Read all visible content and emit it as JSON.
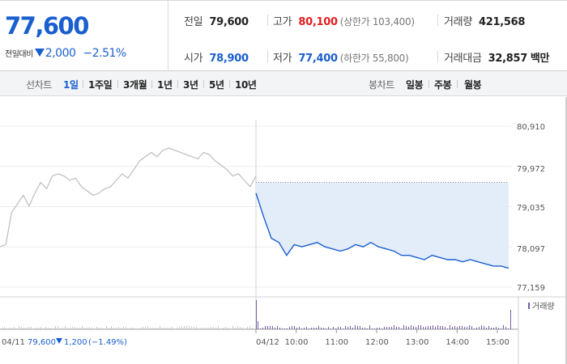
{
  "quote": {
    "current_price": "77,600",
    "change_label": "전일대비",
    "change_amount": "2,000",
    "change_pct": "−2.51%",
    "prev_close_label": "전일",
    "prev_close": "79,600",
    "high_label": "고가",
    "high": "80,100",
    "upper_limit": "(상한가 103,400)",
    "volume_label": "거래량",
    "volume": "421,568",
    "open_label": "시가",
    "open": "78,900",
    "low_label": "저가",
    "low": "77,400",
    "lower_limit": "(하한가 55,800)",
    "amount_label": "거래대금",
    "amount": "32,857",
    "amount_unit": "백만"
  },
  "period_bar": {
    "line_chart_label": "선차트",
    "line_periods": [
      "1일",
      "1주일",
      "3개월",
      "1년",
      "3년",
      "5년",
      "10년"
    ],
    "active_period": "1일",
    "candle_chart_label": "봉차트",
    "candle_periods": [
      "일봉",
      "주봉",
      "월봉"
    ]
  },
  "colors": {
    "down_blue": "#1a5fcf",
    "up_red": "#e01f1f",
    "prev_day_line": "#bdbdbd",
    "fill": "#e3ecf9"
  },
  "chart_data": {
    "type": "line",
    "y_ticks": [
      "80,910",
      "79,972",
      "79,035",
      "78,097",
      "77,159"
    ],
    "ylim": [
      77159,
      80910
    ],
    "prev_close_ref": 79600,
    "volume_legend": "거래량",
    "prev_day_info": {
      "date": "04/11",
      "close": "79,600",
      "change": "1,200",
      "change_pct": "(−1.49%)"
    },
    "x_labels": [
      "04/12",
      "10:00",
      "11:00",
      "12:00",
      "13:00",
      "14:00",
      "15:00"
    ],
    "series": [
      {
        "values": [
          78100,
          78150,
          78900,
          79100,
          79300,
          79050,
          79350,
          79600,
          79450,
          79750,
          79800,
          79750,
          79650,
          79700,
          79500,
          79400,
          79300,
          79350,
          79450,
          79500,
          79650,
          79800,
          79700,
          79900,
          80100,
          80200,
          80300,
          80200,
          80350,
          80400,
          80350,
          80300,
          80250,
          80200,
          80150,
          80300,
          80250,
          80100,
          80000,
          79900,
          79750,
          79800,
          79650,
          79500,
          79750
        ]
      },
      {
        "values": [
          79350,
          78800,
          78300,
          78200,
          77900,
          78150,
          78100,
          78150,
          78200,
          78100,
          78050,
          78000,
          78050,
          78150,
          78100,
          78200,
          78100,
          78050,
          78000,
          77900,
          77900,
          77850,
          77800,
          77900,
          77850,
          77800,
          77800,
          77750,
          77800,
          77750,
          77700,
          77650,
          77650,
          77600
        ]
      }
    ]
  }
}
